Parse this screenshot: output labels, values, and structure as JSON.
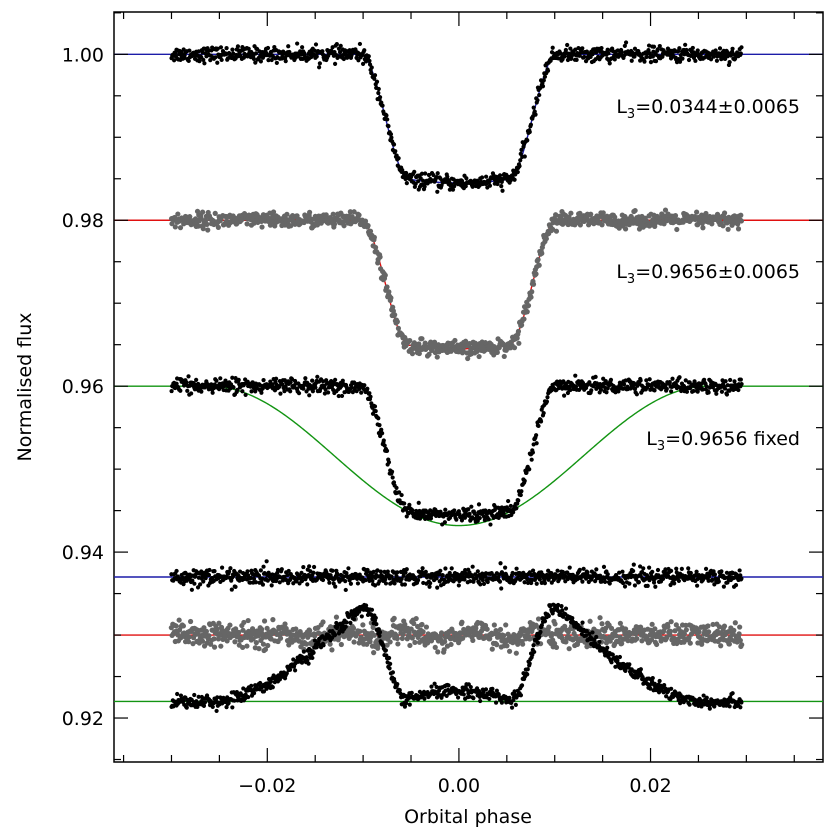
{
  "chart_data": {
    "type": "scatter",
    "xlabel": "Orbital phase",
    "ylabel": "Normalised flux",
    "xlim": [
      -0.036,
      0.038
    ],
    "ylim": [
      0.9147,
      1.0051
    ],
    "xticks": [
      -0.02,
      0.0,
      0.02
    ],
    "xtick_labels": [
      "−0.02",
      "0.00",
      "0.02"
    ],
    "yticks": [
      0.92,
      0.94,
      0.96,
      0.98,
      1.0
    ],
    "ytick_labels": [
      "0.92",
      "0.94",
      "0.96",
      "0.98",
      "1.00"
    ],
    "grid": false,
    "colors": {
      "blue": "#1c1ca8",
      "red": "#e01010",
      "green": "#129412",
      "black_points": "#000000",
      "gray_points": "#666666"
    },
    "series": [
      {
        "baseline": 1.0,
        "depth": 0.0155,
        "fit": "sharp",
        "fit_color": "blue",
        "point_color": "black",
        "scatter": 0.00045
      },
      {
        "baseline": 0.98,
        "depth": 0.0155,
        "fit": "sharp",
        "fit_color": "red",
        "point_color": "gray",
        "scatter": 0.00045
      },
      {
        "baseline": 0.96,
        "depth": 0.0168,
        "fit": "broad",
        "fit_color": "green",
        "point_color": "black",
        "scatter": 0.00045
      },
      {
        "baseline": 0.937,
        "residual": true,
        "fit_color": "blue",
        "point_color": "black",
        "scatter": 0.0005
      },
      {
        "baseline": 0.93,
        "residual": true,
        "fit_color": "red",
        "point_color": "gray",
        "scatter": 0.0007
      },
      {
        "baseline": 0.922,
        "residual": true,
        "fit_color": "green",
        "point_color": "black",
        "scatter": 0.0004
      }
    ],
    "phase_range": [
      -0.03,
      0.0295
    ],
    "annotations": [
      {
        "text": "L",
        "sub": "3",
        "rest": "=0.0344±0.0065"
      },
      {
        "text": "L",
        "sub": "3",
        "rest": "=0.9656±0.0065"
      },
      {
        "text": "L",
        "sub": "3",
        "rest": "=0.9656 fixed"
      }
    ]
  }
}
